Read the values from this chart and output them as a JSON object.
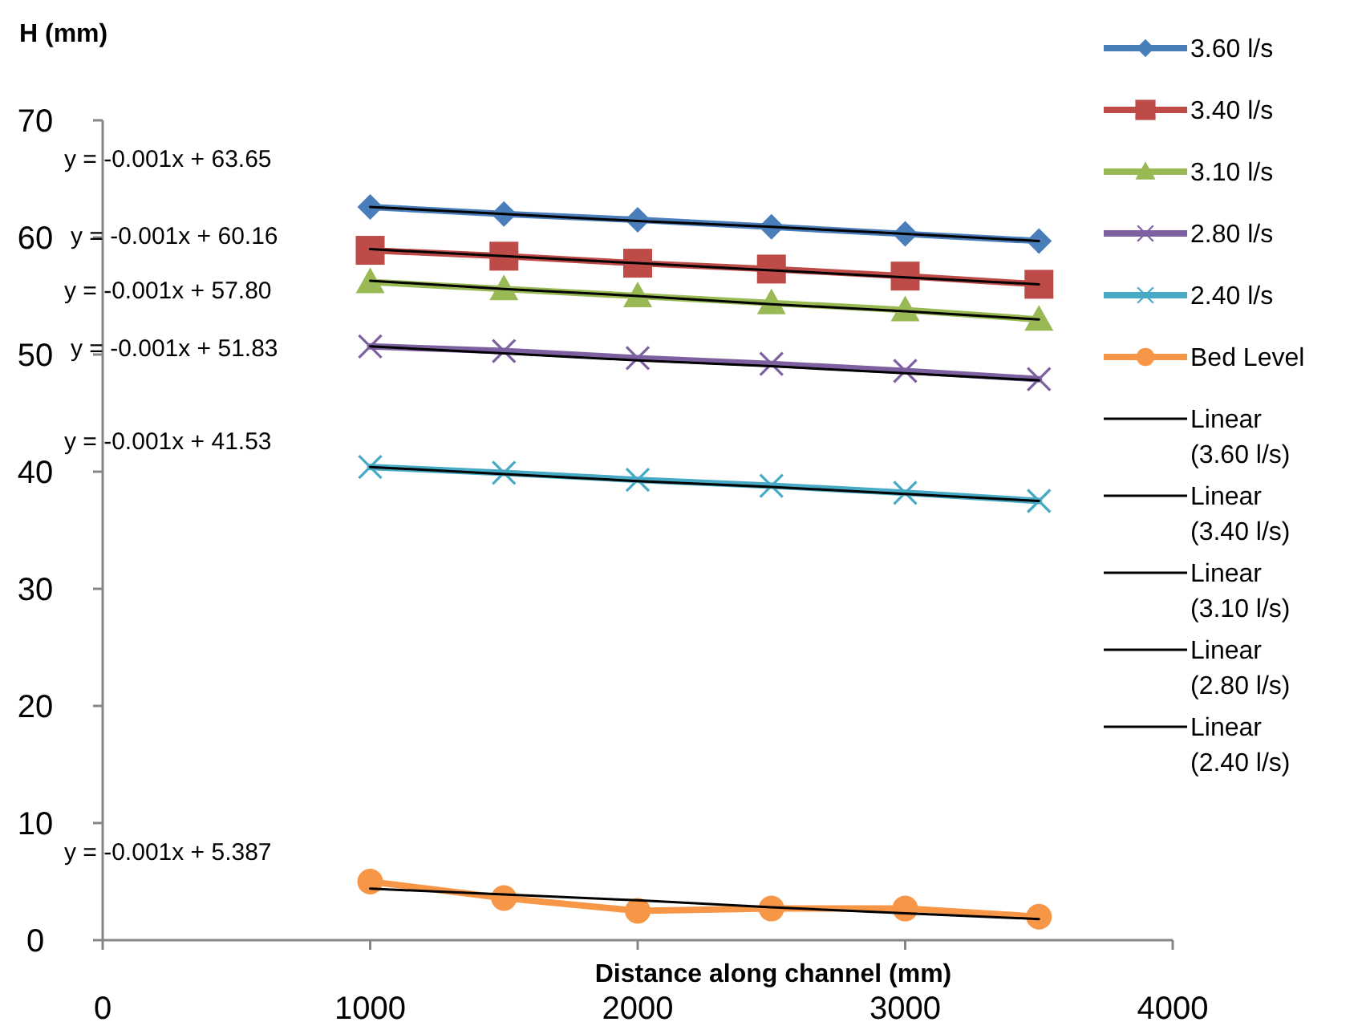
{
  "chart_data": {
    "type": "line",
    "ylabel": "H (mm)",
    "xlabel": "Distance along channel (mm)",
    "xlim": [
      0,
      4000
    ],
    "xticks": [
      0,
      1000,
      2000,
      3000,
      4000
    ],
    "ylim": [
      0,
      70
    ],
    "yticks": [
      0,
      10,
      20,
      30,
      40,
      50,
      60,
      70
    ],
    "grid": false,
    "legend": "right",
    "line_style": "solid",
    "x": [
      1000,
      1500,
      2000,
      2500,
      3000,
      3500
    ],
    "series": [
      {
        "name": "3.60 l/s",
        "color": "#4a7ebb",
        "marker": "diamond",
        "values": [
          62.6,
          62.0,
          61.5,
          60.9,
          60.3,
          59.7
        ]
      },
      {
        "name": "3.40 l/s",
        "color": "#be4b48",
        "marker": "square",
        "values": [
          58.9,
          58.4,
          57.8,
          57.3,
          56.7,
          56.0
        ]
      },
      {
        "name": "3.10 l/s",
        "color": "#98b954",
        "marker": "triangle",
        "values": [
          56.2,
          55.6,
          55.0,
          54.4,
          53.8,
          53.0
        ]
      },
      {
        "name": "2.80 l/s",
        "color": "#7d60a0",
        "marker": "cross",
        "values": [
          50.7,
          50.3,
          49.7,
          49.2,
          48.6,
          47.9
        ]
      },
      {
        "name": "2.40 l/s",
        "color": "#46aac5",
        "marker": "cross",
        "values": [
          40.4,
          39.9,
          39.3,
          38.8,
          38.2,
          37.5
        ]
      },
      {
        "name": "Bed Level",
        "color": "#f79646",
        "marker": "circle",
        "values": [
          5.0,
          3.6,
          2.5,
          2.7,
          2.7,
          2.0
        ]
      },
      {
        "name": "Linear (3.60 l/s)",
        "color": "#000000",
        "marker": "none",
        "values": [
          62.6,
          62.0,
          61.4,
          60.9,
          60.3,
          59.7
        ]
      },
      {
        "name": "Linear (3.40 l/s)",
        "color": "#000000",
        "marker": "none",
        "values": [
          59.0,
          58.4,
          57.8,
          57.2,
          56.6,
          56.0
        ]
      },
      {
        "name": "Linear (3.10 l/s)",
        "color": "#000000",
        "marker": "none",
        "values": [
          56.3,
          55.6,
          55.0,
          54.3,
          53.7,
          53.0
        ]
      },
      {
        "name": "Linear (2.80 l/s)",
        "color": "#000000",
        "marker": "none",
        "values": [
          50.7,
          50.1,
          49.5,
          49.0,
          48.4,
          47.8
        ]
      },
      {
        "name": "Linear (2.40 l/s)",
        "color": "#000000",
        "marker": "none",
        "values": [
          40.4,
          39.8,
          39.2,
          38.7,
          38.1,
          37.5
        ]
      },
      {
        "color": "#000000",
        "marker": "none",
        "values": [
          4.4,
          3.9,
          3.4,
          2.8,
          2.3,
          1.8
        ]
      }
    ],
    "annotations": [
      "y = -0.001x + 63.65",
      "y = -0.001x + 60.16",
      "y = -0.001x + 57.80",
      "y = -0.001x + 51.83",
      "y = -0.001x + 41.53",
      "y = -0.001x + 5.387"
    ]
  }
}
